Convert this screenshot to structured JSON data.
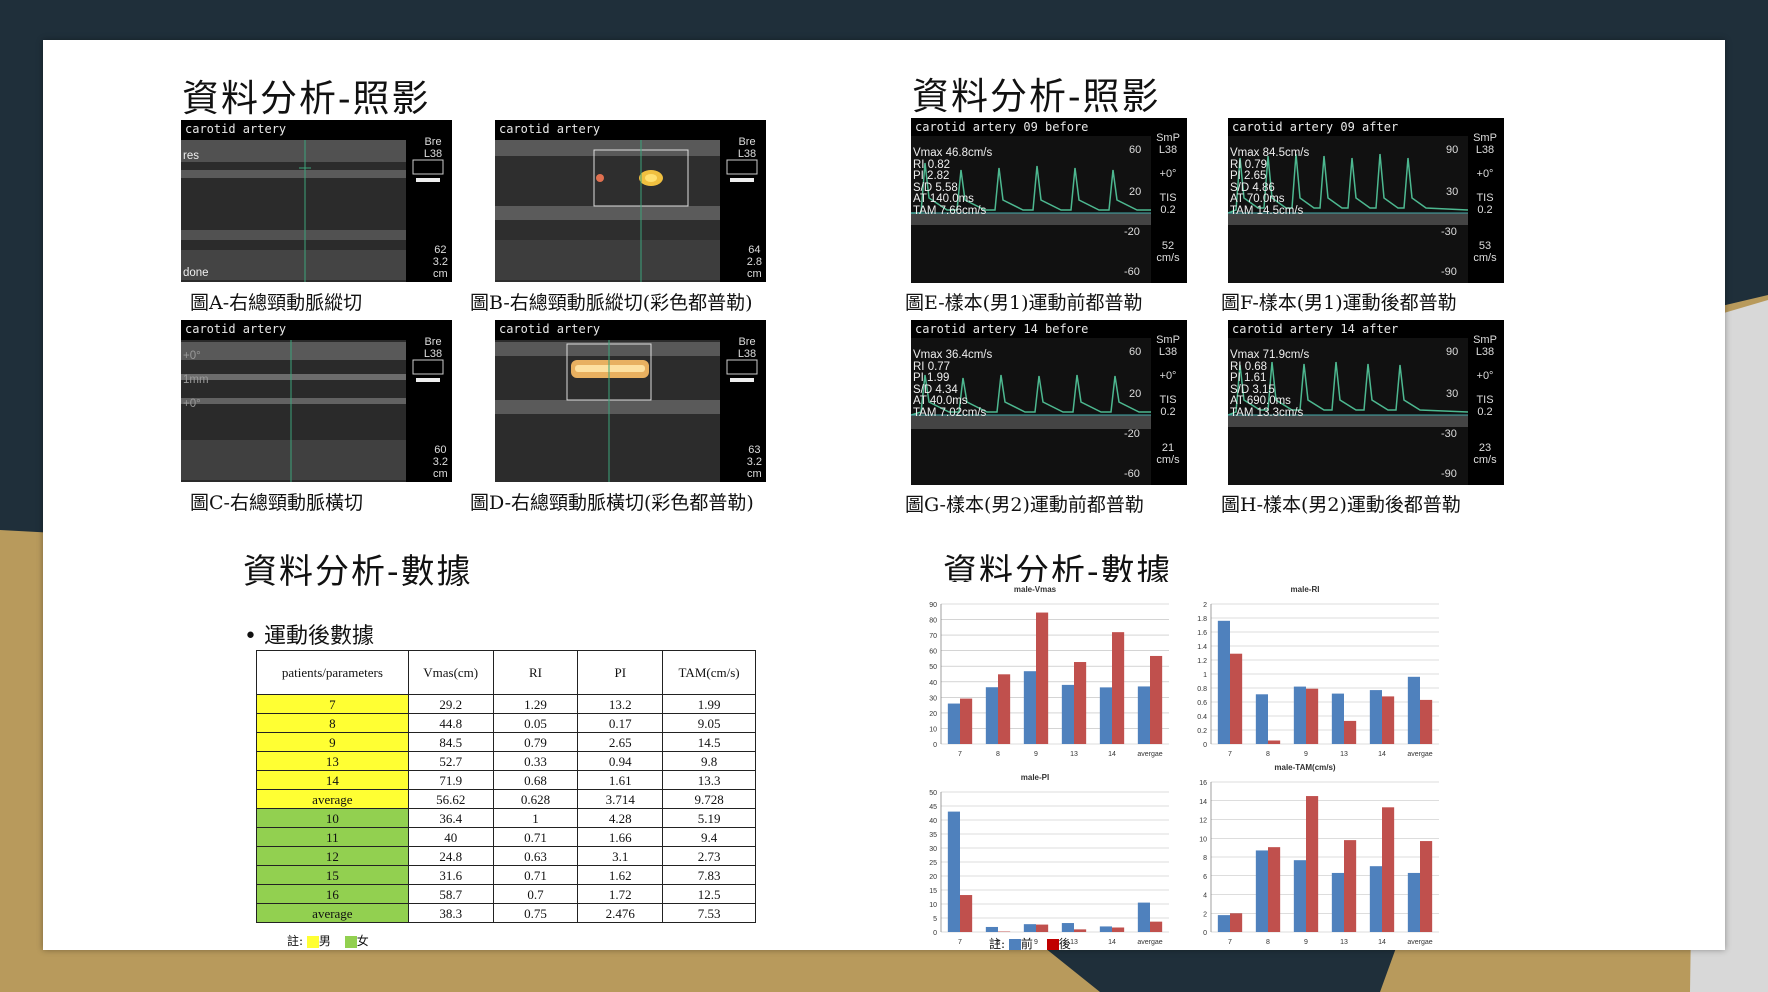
{
  "titles": {
    "photo_left": "資料分析-照影",
    "photo_right": "資料分析-照影",
    "data_left": "資料分析-數據",
    "data_right": "資料分析-數據"
  },
  "images": [
    {
      "header": "carotid artery",
      "side_top": "Bre\nL38",
      "side_bot": "62\n3.2\ncm",
      "caption": "圖A-右總頸動脈縱切",
      "extra": "res\n\n\n\n\n\n\n\n\ndone"
    },
    {
      "header": "carotid artery",
      "side_top": "Bre\nL38",
      "side_bot": "64\n2.8\ncm",
      "caption": "圖B-右總頸動脈縱切(彩色都普勒)"
    },
    {
      "header": "carotid artery",
      "side_top": "Bre\nL38",
      "side_bot": "60\n3.2\ncm",
      "caption": "圖C-右總頸動脈橫切",
      "extra": "+0°\n\n1mm\n\n+0°"
    },
    {
      "header": "carotid artery",
      "side_top": "Bre\nL38",
      "side_bot": "63\n3.2\ncm",
      "caption": "圖D-右總頸動脈橫切(彩色都普勒)"
    }
  ],
  "doppler": [
    {
      "header": "carotid artery 09 before",
      "text": "Vmax 46.8cm/s\nRI 0.82\nPI 2.82\nS/D 5.58\nAT 140.0ms\nTAM 7.66cm/s",
      "scale": [
        "60",
        "20",
        "-20",
        "-60"
      ],
      "side": "SmP\nL38\n\n+0°\n\nTIS\n0.2\n\n\n52\ncm/s",
      "caption": "圖E-樣本(男1)運動前都普勒"
    },
    {
      "header": "carotid artery 09 after",
      "text": "Vmax 84.5cm/s\nRI 0.79\nPI 2.65\nS/D 4.86\nAT 70.0ms\nTAM 14.5cm/s",
      "scale": [
        "90",
        "30",
        "-30",
        "-90"
      ],
      "side": "SmP\nL38\n\n+0°\n\nTIS\n0.2\n\n\n53\ncm/s",
      "caption": "圖F-樣本(男1)運動後都普勒"
    },
    {
      "header": "carotid artery 14 before",
      "text": "Vmax 36.4cm/s\nRI 0.77\nPI 1.99\nS/D 4.34\nAT 40.0ms\nTAM 7.02cm/s",
      "scale": [
        "60",
        "20",
        "-20",
        "-60"
      ],
      "side": "SmP\nL38\n\n+0°\n\nTIS\n0.2\n\n\n21\ncm/s",
      "caption": "圖G-樣本(男2)運動前都普勒"
    },
    {
      "header": "carotid artery 14 after",
      "text": "Vmax 71.9cm/s\nRI 0.68\nPI 1.61\nS/D 3.15\nAT 690.0ms\nTAM 13.3cm/s",
      "scale": [
        "90",
        "30",
        "-30",
        "-90"
      ],
      "side": "SmP\nL38\n\n+0°\n\nTIS\n0.2\n\n\n23\ncm/s",
      "caption": "圖H-樣本(男2)運動後都普勒"
    }
  ],
  "bullet": "• 運動後數據",
  "table": {
    "headers": [
      "patients/parameters",
      "Vmas(cm)",
      "RI",
      "PI",
      "TAM(cm/s)"
    ],
    "rows": [
      {
        "g": 1,
        "c": [
          "7",
          "29.2",
          "1.29",
          "13.2",
          "1.99"
        ]
      },
      {
        "g": 1,
        "c": [
          "8",
          "44.8",
          "0.05",
          "0.17",
          "9.05"
        ]
      },
      {
        "g": 1,
        "c": [
          "9",
          "84.5",
          "0.79",
          "2.65",
          "14.5"
        ]
      },
      {
        "g": 1,
        "c": [
          "13",
          "52.7",
          "0.33",
          "0.94",
          "9.8"
        ]
      },
      {
        "g": 1,
        "c": [
          "14",
          "71.9",
          "0.68",
          "1.61",
          "13.3"
        ]
      },
      {
        "g": 1,
        "c": [
          "average",
          "56.62",
          "0.628",
          "3.714",
          "9.728"
        ]
      },
      {
        "g": 2,
        "c": [
          "10",
          "36.4",
          "1",
          "4.28",
          "5.19"
        ]
      },
      {
        "g": 2,
        "c": [
          "11",
          "40",
          "0.71",
          "1.66",
          "9.4"
        ]
      },
      {
        "g": 2,
        "c": [
          "12",
          "24.8",
          "0.63",
          "3.1",
          "2.73"
        ]
      },
      {
        "g": 2,
        "c": [
          "15",
          "31.6",
          "0.71",
          "1.62",
          "7.83"
        ]
      },
      {
        "g": 2,
        "c": [
          "16",
          "58.7",
          "0.7",
          "1.72",
          "12.5"
        ]
      },
      {
        "g": 2,
        "c": [
          "average",
          "38.3",
          "0.75",
          "2.476",
          "7.53"
        ]
      }
    ]
  },
  "table_note": {
    "prefix": "註:",
    "g1": "男",
    "g2": "女",
    "g1_color": "#ffff33",
    "g2_color": "#92d050"
  },
  "chart_note": {
    "prefix": "註:",
    "s1": "前",
    "s2": "後",
    "s1_color": "#4f81bd",
    "s2_color": "#c0504d"
  },
  "colors": {
    "series_before": "#4f81bd",
    "series_after": "#c0504d",
    "background_dark": "#1f2f3a",
    "background_gold": "#b89a5c"
  },
  "chart_data": [
    {
      "type": "bar",
      "title": "male-Vmas",
      "categories": [
        "7",
        "8",
        "9",
        "13",
        "14",
        "avergae"
      ],
      "ylim": [
        0,
        90
      ],
      "yticks": [
        0,
        10,
        20,
        30,
        40,
        50,
        60,
        70,
        80,
        90
      ],
      "series": [
        {
          "name": "前",
          "values": [
            26,
            36.5,
            46.8,
            38,
            36.4,
            37
          ]
        },
        {
          "name": "後",
          "values": [
            29.2,
            44.8,
            84.5,
            52.7,
            71.9,
            56.6
          ]
        }
      ]
    },
    {
      "type": "bar",
      "title": "male-RI",
      "categories": [
        "7",
        "8",
        "9",
        "13",
        "14",
        "avergae"
      ],
      "ylim": [
        0,
        2
      ],
      "yticks": [
        0,
        0.2,
        0.4,
        0.6,
        0.8,
        1,
        1.2,
        1.4,
        1.6,
        1.8,
        2
      ],
      "series": [
        {
          "name": "前",
          "values": [
            1.76,
            0.71,
            0.82,
            0.72,
            0.77,
            0.96
          ]
        },
        {
          "name": "後",
          "values": [
            1.29,
            0.05,
            0.79,
            0.33,
            0.68,
            0.63
          ]
        }
      ]
    },
    {
      "type": "bar",
      "title": "male-PI",
      "categories": [
        "7",
        "8",
        "9",
        "13",
        "14",
        "avergae"
      ],
      "ylim": [
        0,
        50
      ],
      "yticks": [
        0,
        5,
        10,
        15,
        20,
        25,
        30,
        35,
        40,
        45,
        50
      ],
      "series": [
        {
          "name": "前",
          "values": [
            43,
            1.8,
            2.8,
            3.2,
            1.99,
            10.5
          ]
        },
        {
          "name": "後",
          "values": [
            13.2,
            0.17,
            2.65,
            0.94,
            1.61,
            3.7
          ]
        }
      ]
    },
    {
      "type": "bar",
      "title": "male-TAM(cm/s)",
      "categories": [
        "7",
        "8",
        "9",
        "13",
        "14",
        "avergae"
      ],
      "ylim": [
        0,
        16
      ],
      "yticks": [
        0,
        2,
        4,
        6,
        8,
        10,
        12,
        14,
        16
      ],
      "series": [
        {
          "name": "前",
          "values": [
            1.8,
            8.7,
            7.66,
            6.3,
            7.02,
            6.3
          ]
        },
        {
          "name": "後",
          "values": [
            1.99,
            9.05,
            14.5,
            9.8,
            13.3,
            9.7
          ]
        }
      ]
    }
  ]
}
